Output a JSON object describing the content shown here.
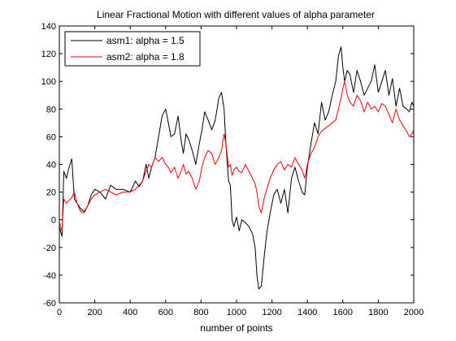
{
  "chart_data": {
    "type": "line",
    "title": "Linear Fractional Motion with different values of alpha parameter",
    "xlabel": "number of points",
    "ylabel": "",
    "xlim": [
      0,
      2000
    ],
    "ylim": [
      -60,
      140
    ],
    "xticks": [
      0,
      200,
      400,
      600,
      800,
      1000,
      1200,
      1400,
      1600,
      1800,
      2000
    ],
    "yticks": [
      -60,
      -40,
      -20,
      0,
      20,
      40,
      60,
      80,
      100,
      120,
      140
    ],
    "grid": false,
    "legend_position": "top-left",
    "series": [
      {
        "name": "asm1: alpha = 1.5",
        "color": "#000000",
        "x": [
          0,
          15,
          25,
          40,
          55,
          70,
          85,
          100,
          120,
          140,
          160,
          180,
          200,
          230,
          260,
          290,
          320,
          360,
          400,
          430,
          450,
          470,
          490,
          505,
          520,
          540,
          560,
          580,
          600,
          615,
          630,
          650,
          670,
          690,
          700,
          715,
          730,
          750,
          770,
          790,
          805,
          820,
          840,
          860,
          880,
          900,
          915,
          930,
          940,
          955,
          965,
          975,
          985,
          1000,
          1015,
          1030,
          1050,
          1070,
          1090,
          1105,
          1115,
          1125,
          1140,
          1155,
          1170,
          1190,
          1210,
          1230,
          1250,
          1270,
          1290,
          1310,
          1330,
          1350,
          1370,
          1385,
          1400,
          1420,
          1440,
          1460,
          1480,
          1500,
          1520,
          1540,
          1560,
          1575,
          1590,
          1600,
          1610,
          1625,
          1640,
          1660,
          1680,
          1700,
          1720,
          1740,
          1760,
          1780,
          1800,
          1820,
          1840,
          1860,
          1880,
          1900,
          1920,
          1940,
          1960,
          1975,
          1990,
          2000
        ],
        "values": [
          -5,
          -12,
          35,
          30,
          38,
          44,
          15,
          12,
          8,
          6,
          10,
          18,
          22,
          20,
          15,
          25,
          22,
          22,
          20,
          28,
          24,
          28,
          40,
          30,
          38,
          45,
          60,
          75,
          80,
          70,
          60,
          62,
          75,
          55,
          48,
          62,
          58,
          50,
          40,
          55,
          65,
          78,
          72,
          65,
          72,
          88,
          92,
          80,
          55,
          28,
          25,
          0,
          -5,
          2,
          -8,
          0,
          -2,
          -5,
          -10,
          -20,
          -40,
          -50,
          -48,
          -28,
          -10,
          5,
          18,
          22,
          12,
          22,
          5,
          30,
          38,
          28,
          20,
          18,
          38,
          55,
          70,
          62,
          85,
          72,
          78,
          90,
          100,
          118,
          125,
          110,
          100,
          108,
          105,
          92,
          108,
          100,
          90,
          95,
          100,
          112,
          92,
          100,
          108,
          90,
          102,
          82,
          95,
          82,
          80,
          78,
          85,
          82
        ]
      },
      {
        "name": "asm2: alpha = 1.8",
        "color": "#ff0000",
        "x": [
          0,
          15,
          25,
          40,
          55,
          70,
          85,
          100,
          120,
          140,
          160,
          180,
          200,
          230,
          260,
          290,
          320,
          360,
          400,
          430,
          450,
          470,
          490,
          505,
          520,
          540,
          560,
          580,
          600,
          615,
          630,
          650,
          670,
          690,
          700,
          715,
          730,
          750,
          770,
          790,
          805,
          820,
          840,
          860,
          880,
          900,
          915,
          930,
          940,
          955,
          965,
          975,
          985,
          1000,
          1015,
          1030,
          1050,
          1070,
          1090,
          1105,
          1115,
          1125,
          1140,
          1155,
          1170,
          1190,
          1210,
          1230,
          1250,
          1270,
          1290,
          1310,
          1330,
          1350,
          1370,
          1385,
          1400,
          1420,
          1440,
          1460,
          1480,
          1500,
          1520,
          1540,
          1560,
          1575,
          1590,
          1600,
          1610,
          1625,
          1640,
          1660,
          1680,
          1700,
          1720,
          1740,
          1760,
          1780,
          1800,
          1820,
          1840,
          1860,
          1880,
          1900,
          1920,
          1940,
          1960,
          1975,
          1990,
          2000
        ],
        "values": [
          -2,
          -8,
          15,
          12,
          14,
          16,
          20,
          12,
          6,
          5,
          10,
          15,
          18,
          20,
          22,
          20,
          18,
          20,
          20,
          22,
          25,
          28,
          35,
          40,
          38,
          45,
          42,
          45,
          40,
          38,
          34,
          38,
          30,
          36,
          40,
          33,
          35,
          30,
          22,
          28,
          38,
          45,
          50,
          48,
          40,
          45,
          50,
          62,
          55,
          38,
          40,
          32,
          36,
          38,
          35,
          34,
          40,
          35,
          30,
          26,
          20,
          10,
          5,
          15,
          22,
          30,
          36,
          40,
          42,
          36,
          40,
          38,
          45,
          40,
          36,
          30,
          40,
          48,
          52,
          60,
          64,
          66,
          68,
          70,
          72,
          80,
          88,
          95,
          100,
          90,
          85,
          82,
          90,
          86,
          78,
          85,
          80,
          82,
          78,
          84,
          82,
          76,
          70,
          80,
          72,
          68,
          64,
          60,
          62,
          65
        ]
      }
    ]
  }
}
